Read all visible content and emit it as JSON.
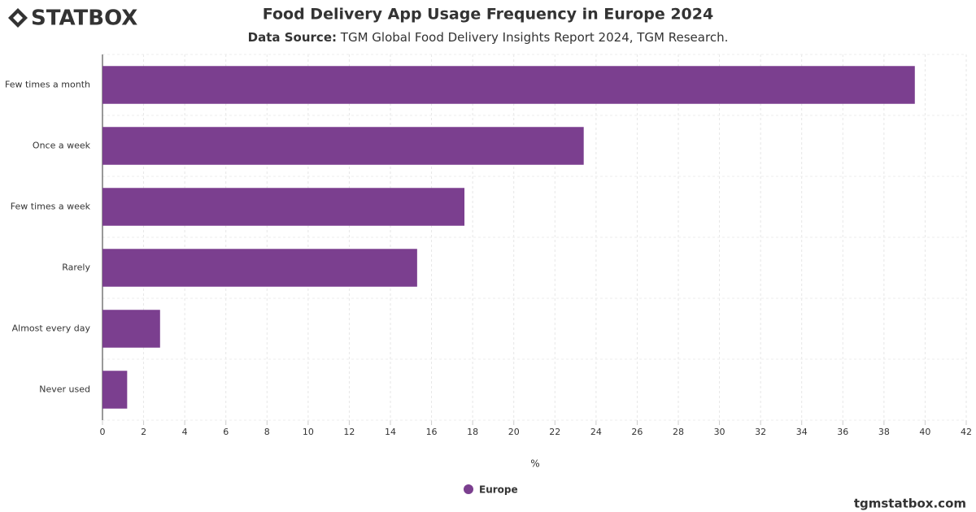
{
  "branding": {
    "logo": "STATBOX",
    "website": "tgmstatbox.com"
  },
  "chart_data": {
    "type": "bar",
    "orientation": "horizontal",
    "title": "Food Delivery App Usage Frequency in Europe 2024",
    "source_label": "Data Source:",
    "source": "TGM Global Food Delivery Insights Report 2024, TGM Research.",
    "categories": [
      "Few times a month",
      "Once a week",
      "Few times a week",
      "Rarely",
      "Almost every day",
      "Never used"
    ],
    "series": [
      {
        "name": "Europe",
        "color": "#7b3f8f",
        "values": [
          39.5,
          23.4,
          17.6,
          15.3,
          2.8,
          1.2
        ]
      }
    ],
    "xlabel": "%",
    "xlim": [
      0,
      42
    ],
    "xticks": [
      0,
      2,
      4,
      6,
      8,
      10,
      12,
      14,
      16,
      18,
      20,
      22,
      24,
      26,
      28,
      30,
      32,
      34,
      36,
      38,
      40,
      42
    ],
    "grid": true
  }
}
